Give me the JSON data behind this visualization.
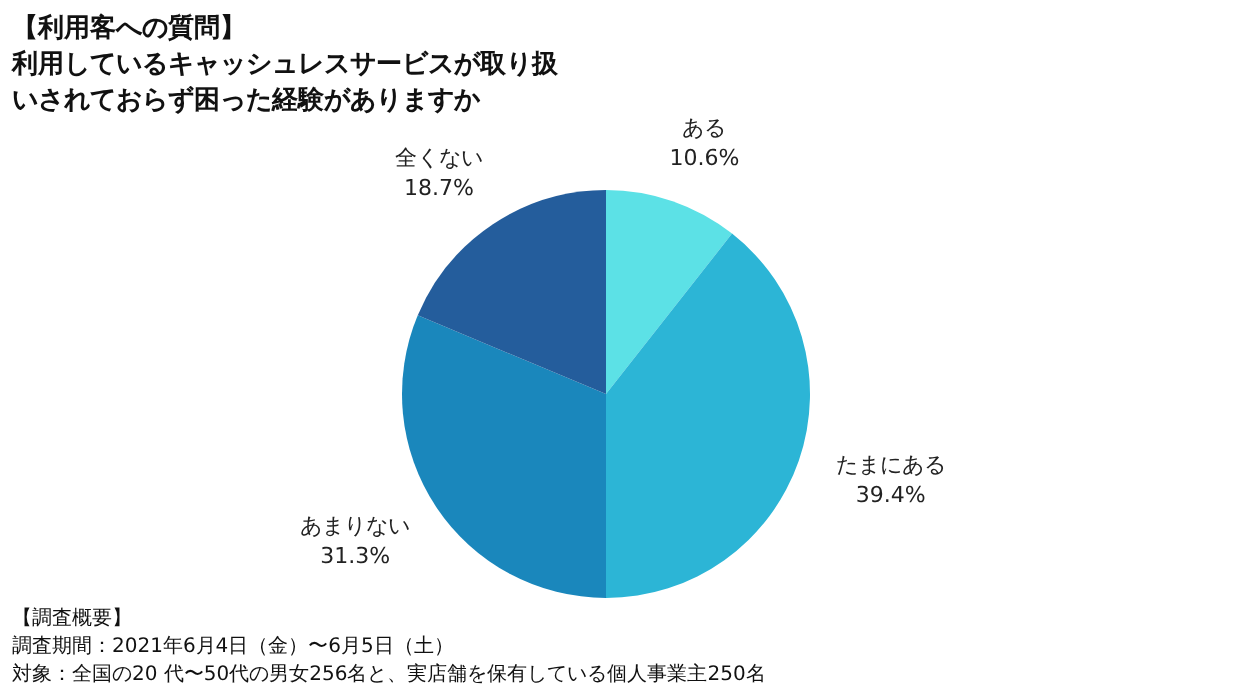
{
  "chart_data": {
    "type": "pie",
    "title": "【利用客への質問】",
    "subtitle": "利用しているキャッシュレスサービスが取り扱いされておらず困った経験がありますか",
    "categories": [
      "ある",
      "たまにある",
      "あまりない",
      "全くない"
    ],
    "values": [
      10.6,
      39.4,
      31.3,
      18.7
    ],
    "colors": [
      "#5ce1e6",
      "#2cb5d6",
      "#1a87bc",
      "#245d9c"
    ],
    "value_labels": [
      "10.6%",
      "39.4%",
      "31.3%",
      "18.7%"
    ],
    "legend": false,
    "annotations": [
      "【調査概要】",
      "調査期間：2021年6月4日（金）〜6月5日（土）",
      "対象：全国の20 代〜50代の男女256名と、実店舗を保有している個人事業主250名"
    ]
  }
}
